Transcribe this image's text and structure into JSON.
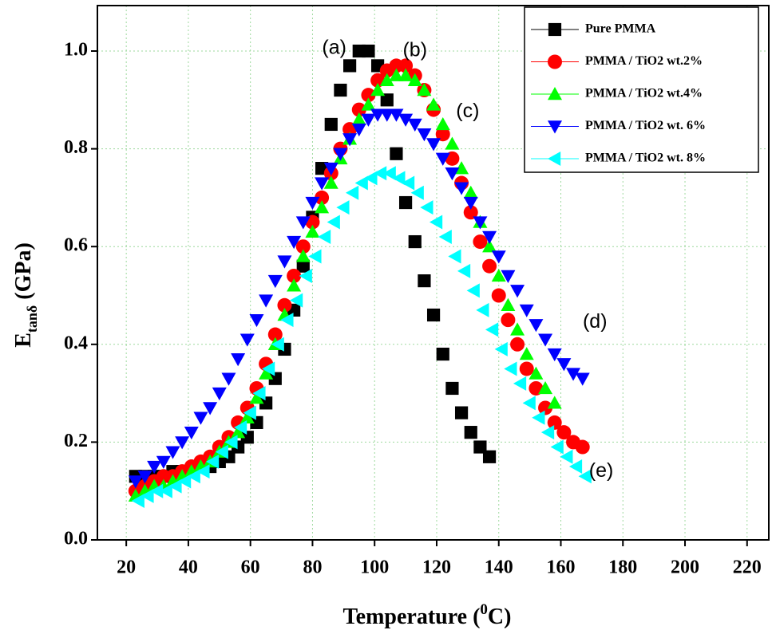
{
  "chart_data": {
    "type": "scatter",
    "x_label": {
      "before": "Temperature (",
      "sup": "0",
      "after": "C)"
    },
    "y_label": {
      "main": "E",
      "sub": "tanδ",
      "after": " (GPa)"
    },
    "xlim": [
      10.7,
      227
    ],
    "ylim": [
      0,
      1.093
    ],
    "xticks": [
      20,
      40,
      60,
      80,
      100,
      120,
      140,
      160,
      180,
      200,
      220
    ],
    "yticks": [
      {
        "value": 0,
        "label": "0.0"
      },
      0.2,
      0.4,
      0.6,
      0.8,
      {
        "value": 1,
        "label": "1.0"
      }
    ],
    "grid": true,
    "legend": "top-right",
    "annotations": [
      {
        "text": "(a)",
        "x": 87,
        "y": 1.005
      },
      {
        "text": "(b)",
        "x": 113,
        "y": 1.0
      },
      {
        "text": "(c)",
        "x": 130,
        "y": 0.875
      },
      {
        "text": "(d)",
        "x": 171,
        "y": 0.445
      },
      {
        "text": "(e)",
        "x": 173,
        "y": 0.14
      }
    ],
    "series": [
      {
        "name": "Pure PMMA",
        "color": "#000000",
        "marker": "square",
        "x": [
          23,
          26,
          29,
          32,
          35,
          38,
          41,
          44,
          47,
          50,
          53,
          56,
          59,
          62,
          65,
          68,
          71,
          74,
          77,
          80,
          83,
          86,
          89,
          92,
          95,
          98,
          101,
          104,
          107,
          110,
          113,
          116,
          119,
          122,
          125,
          128,
          131,
          134,
          137
        ],
        "values": [
          0.13,
          0.13,
          0.13,
          0.13,
          0.14,
          0.14,
          0.14,
          0.15,
          0.15,
          0.16,
          0.17,
          0.19,
          0.21,
          0.24,
          0.28,
          0.33,
          0.39,
          0.47,
          0.56,
          0.66,
          0.76,
          0.85,
          0.92,
          0.97,
          1.0,
          1.0,
          0.97,
          0.9,
          0.79,
          0.69,
          0.61,
          0.53,
          0.46,
          0.38,
          0.31,
          0.26,
          0.22,
          0.19,
          0.17
        ]
      },
      {
        "name": "PMMA / TiO2 wt.2%",
        "color": "#ff0000",
        "marker": "circle",
        "x": [
          23,
          26,
          29,
          32,
          35,
          38,
          41,
          44,
          47,
          50,
          53,
          56,
          59,
          62,
          65,
          68,
          71,
          74,
          77,
          80,
          83,
          86,
          89,
          92,
          95,
          98,
          101,
          104,
          107,
          110,
          113,
          116,
          119,
          122,
          125,
          128,
          131,
          134,
          137,
          140,
          143,
          146,
          149,
          152,
          155,
          158,
          161,
          164,
          167
        ],
        "values": [
          0.1,
          0.11,
          0.12,
          0.13,
          0.13,
          0.14,
          0.15,
          0.16,
          0.17,
          0.19,
          0.21,
          0.24,
          0.27,
          0.31,
          0.36,
          0.42,
          0.48,
          0.54,
          0.6,
          0.65,
          0.7,
          0.75,
          0.8,
          0.84,
          0.88,
          0.91,
          0.94,
          0.96,
          0.97,
          0.97,
          0.95,
          0.92,
          0.88,
          0.83,
          0.78,
          0.73,
          0.67,
          0.61,
          0.56,
          0.5,
          0.45,
          0.4,
          0.35,
          0.31,
          0.27,
          0.24,
          0.22,
          0.2,
          0.19
        ]
      },
      {
        "name": "PMMA / TiO2 wt.4%",
        "color": "#00ff00",
        "marker": "triangle-up",
        "x": [
          23,
          26,
          29,
          32,
          35,
          38,
          41,
          44,
          47,
          50,
          53,
          56,
          59,
          62,
          65,
          68,
          71,
          74,
          77,
          80,
          83,
          86,
          89,
          92,
          95,
          98,
          101,
          104,
          107,
          110,
          113,
          116,
          119,
          122,
          125,
          128,
          131,
          134,
          137,
          140,
          143,
          146,
          149,
          152,
          155,
          158
        ],
        "values": [
          0.09,
          0.1,
          0.11,
          0.11,
          0.12,
          0.13,
          0.14,
          0.15,
          0.16,
          0.18,
          0.2,
          0.22,
          0.25,
          0.29,
          0.34,
          0.4,
          0.46,
          0.52,
          0.58,
          0.63,
          0.68,
          0.73,
          0.78,
          0.82,
          0.86,
          0.89,
          0.92,
          0.94,
          0.95,
          0.95,
          0.94,
          0.92,
          0.89,
          0.85,
          0.81,
          0.76,
          0.71,
          0.65,
          0.6,
          0.54,
          0.48,
          0.43,
          0.38,
          0.34,
          0.31,
          0.28
        ]
      },
      {
        "name": "PMMA / TiO2 wt. 6%",
        "color": "#0000ff",
        "marker": "triangle-down",
        "x": [
          23,
          26,
          29,
          32,
          35,
          38,
          41,
          44,
          47,
          50,
          53,
          56,
          59,
          62,
          65,
          68,
          71,
          74,
          77,
          80,
          83,
          86,
          89,
          92,
          95,
          98,
          101,
          104,
          107,
          110,
          113,
          116,
          119,
          122,
          125,
          128,
          131,
          134,
          137,
          140,
          143,
          146,
          149,
          152,
          155,
          158,
          161,
          164,
          167
        ],
        "values": [
          0.12,
          0.13,
          0.15,
          0.16,
          0.18,
          0.2,
          0.22,
          0.25,
          0.27,
          0.3,
          0.33,
          0.37,
          0.41,
          0.45,
          0.49,
          0.53,
          0.57,
          0.61,
          0.65,
          0.69,
          0.73,
          0.76,
          0.79,
          0.82,
          0.84,
          0.86,
          0.87,
          0.87,
          0.87,
          0.86,
          0.85,
          0.83,
          0.81,
          0.78,
          0.75,
          0.72,
          0.69,
          0.65,
          0.62,
          0.58,
          0.54,
          0.51,
          0.47,
          0.44,
          0.41,
          0.38,
          0.36,
          0.34,
          0.33
        ]
      },
      {
        "name": "PMMA / TiO2 wt. 8%",
        "color": "#00ffff",
        "marker": "triangle-left",
        "x": [
          24,
          27,
          30,
          33,
          36,
          39,
          42,
          45,
          48,
          51,
          54,
          57,
          60,
          63,
          66,
          69,
          72,
          75,
          78,
          81,
          84,
          87,
          90,
          93,
          96,
          99,
          102,
          105,
          108,
          111,
          114,
          117,
          120,
          123,
          126,
          129,
          132,
          135,
          138,
          141,
          144,
          147,
          150,
          153,
          156,
          159,
          162,
          165,
          168
        ],
        "values": [
          0.08,
          0.09,
          0.1,
          0.1,
          0.11,
          0.12,
          0.13,
          0.14,
          0.16,
          0.18,
          0.2,
          0.23,
          0.26,
          0.3,
          0.35,
          0.4,
          0.45,
          0.49,
          0.54,
          0.58,
          0.62,
          0.65,
          0.68,
          0.71,
          0.73,
          0.74,
          0.75,
          0.75,
          0.74,
          0.73,
          0.71,
          0.68,
          0.65,
          0.62,
          0.58,
          0.55,
          0.51,
          0.47,
          0.43,
          0.39,
          0.35,
          0.32,
          0.28,
          0.25,
          0.22,
          0.19,
          0.17,
          0.15,
          0.13
        ]
      }
    ]
  }
}
